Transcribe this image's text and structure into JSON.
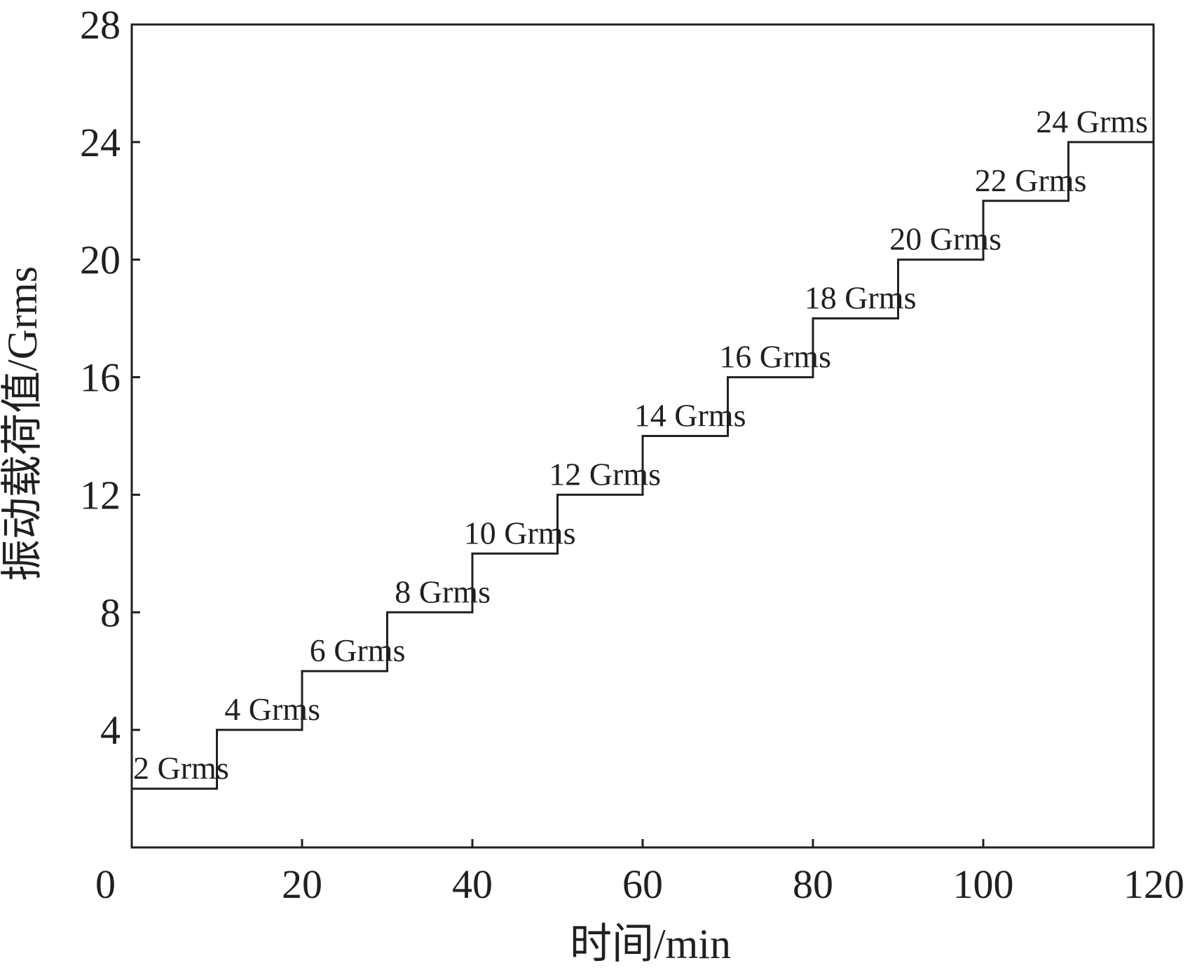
{
  "chart_data": {
    "type": "line",
    "step": true,
    "title": "",
    "xlabel": "时间/min",
    "ylabel": "振动载荷值/Grms",
    "xlim": [
      0,
      120
    ],
    "ylim": [
      0,
      28
    ],
    "y_ticks": [
      4,
      8,
      12,
      16,
      20,
      24,
      28
    ],
    "x_ticks": [
      0,
      20,
      40,
      60,
      80,
      100,
      120
    ],
    "grid": false,
    "legend": "none",
    "line_color": "#231f20",
    "series": [
      {
        "segments": [
          {
            "start": 0,
            "end": 10,
            "value": 2,
            "label": "2 Grms"
          },
          {
            "start": 10,
            "end": 20,
            "value": 4,
            "label": "4 Grms"
          },
          {
            "start": 20,
            "end": 30,
            "value": 6,
            "label": "6 Grms"
          },
          {
            "start": 30,
            "end": 40,
            "value": 8,
            "label": "8 Grms"
          },
          {
            "start": 40,
            "end": 50,
            "value": 10,
            "label": "10 Grms"
          },
          {
            "start": 50,
            "end": 60,
            "value": 12,
            "label": "12 Grms"
          },
          {
            "start": 60,
            "end": 70,
            "value": 14,
            "label": "14 Grms"
          },
          {
            "start": 70,
            "end": 80,
            "value": 16,
            "label": "16 Grms"
          },
          {
            "start": 80,
            "end": 90,
            "value": 18,
            "label": "18 Grms"
          },
          {
            "start": 90,
            "end": 100,
            "value": 20,
            "label": "20 Grms"
          },
          {
            "start": 100,
            "end": 110,
            "value": 22,
            "label": "22 Grms"
          },
          {
            "start": 110,
            "end": 120,
            "value": 24,
            "label": "24 Grms"
          }
        ]
      }
    ]
  }
}
